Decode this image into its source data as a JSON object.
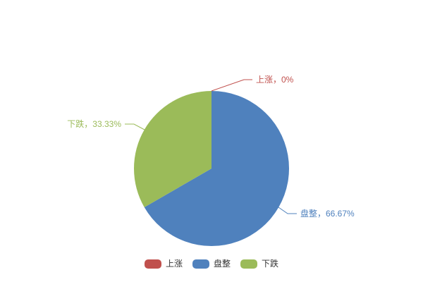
{
  "chart_data": {
    "type": "pie",
    "title": "",
    "background": "#ffffff",
    "legend_position": "bottom",
    "label_line": true,
    "labels_outside": true,
    "slices": [
      {
        "name": "上涨",
        "value": 0,
        "percent": "0%",
        "label": "上涨，0%",
        "color": "#c0504d"
      },
      {
        "name": "盘整",
        "value": 66.67,
        "percent": "66.67%",
        "label": "盘整，66.67%",
        "color": "#4f81bd"
      },
      {
        "name": "下跌",
        "value": 33.33,
        "percent": "33.33%",
        "label": "下跌，33.33%",
        "color": "#9bbb59"
      }
    ],
    "legend": [
      "上涨",
      "盘整",
      "下跌"
    ],
    "legend_text_color": "#333333"
  }
}
